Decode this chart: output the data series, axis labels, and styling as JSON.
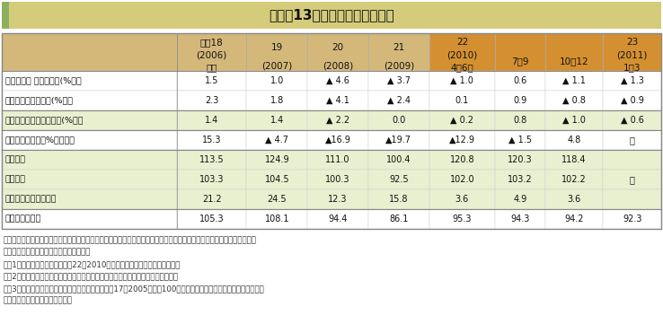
{
  "title": "表１－13　主要経済指標の推移",
  "title_bg": "#d4cc7a",
  "title_left_bar": "#8db060",
  "header_bg_left": "#d4b87a",
  "header_bg_right": "#d4a030",
  "row_bg_green": "#e8f0d0",
  "row_bg_white": "#ffffff",
  "col_headers": [
    "平成18\n(2006)\n年度",
    "19\n(2007)",
    "20\n(2008)",
    "21\n(2009)",
    "22\n(2010)\n4～6月",
    "7～9",
    "10～12",
    "23\n(2011)\n1～3"
  ],
  "rows": [
    {
      "label": "国内総生産 名目成長率(%）＊",
      "values": [
        "1.5",
        "1.0",
        "▲ 4.6",
        "▲ 3.7",
        "▲ 1.0",
        "0.6",
        "▲ 1.1",
        "▲ 1.3"
      ],
      "bg": "#ffffff",
      "group_start": true,
      "label_indent": 0
    },
    {
      "label": "　　　　実質成長率(%）＊",
      "values": [
        "2.3",
        "1.8",
        "▲ 4.1",
        "▲ 2.4",
        "0.1",
        "0.9",
        "▲ 0.8",
        "▲ 0.9"
      ],
      "bg": "#ffffff",
      "group_start": false,
      "label_indent": 0
    },
    {
      "label": "民間最終消費支出　実質(%）＊",
      "values": [
        "1.4",
        "1.4",
        "▲ 2.2",
        "0.0",
        "▲ 0.2",
        "0.8",
        "▲ 1.0",
        "▲ 0.6"
      ],
      "bg": "#e8f0d0",
      "group_start": true,
      "label_indent": 0
    },
    {
      "label": "設備投資　　　（%）　　＊",
      "values": [
        "15.3",
        "▲ 4.7",
        "▲16.9",
        "▲19.7",
        "▲12.9",
        "▲ 1.5",
        "4.8",
        "－"
      ],
      "bg": "#ffffff",
      "group_start": true,
      "label_indent": 0
    },
    {
      "label": "実質輸出",
      "values": [
        "113.5",
        "124.9",
        "111.0",
        "100.4",
        "120.8",
        "120.3",
        "118.4",
        ""
      ],
      "bg": "#e8f0d0",
      "group_start": true,
      "label_indent": 0
    },
    {
      "label": "実質輸入",
      "values": [
        "103.3",
        "104.5",
        "100.3",
        "92.5",
        "102.0",
        "103.2",
        "102.2",
        "－"
      ],
      "bg": "#e8f0d0",
      "group_start": false,
      "label_indent": 0
    },
    {
      "label": "経常収支　　（兆円）",
      "values": [
        "21.2",
        "24.5",
        "12.3",
        "15.8",
        "3.6",
        "4.9",
        "3.6",
        ""
      ],
      "bg": "#e8f0d0",
      "group_start": false,
      "label_indent": 0
    },
    {
      "label": "鉱工業生産指数",
      "values": [
        "105.3",
        "108.1",
        "94.4",
        "86.1",
        "95.3",
        "94.3",
        "94.2",
        "92.3"
      ],
      "bg": "#ffffff",
      "group_start": true,
      "label_indent": 0
    }
  ],
  "footer_lines": [
    "資料：内閣府「国民経済計算」、財務省「法人企業統計調査」、「国際収支統計」、日本銀行「実質輸出入」、経済産業省",
    "　「鉱工業指数」を基に農林水産省で作成",
    "注：1）＊は対前期増減率。平成22（2010）年度の四半期は季節調整済の数値",
    "　　2）設備投資はソフトウェア投資を除く数値（保険・金融業を含まない全業種）",
    "　　3）実質輸出、実質輸入、鉱工業生産指数は平成17（2005）年を100とした指数で、年度の数値は原指数、四半",
    "　　　期の数字は季節調整済指数"
  ]
}
